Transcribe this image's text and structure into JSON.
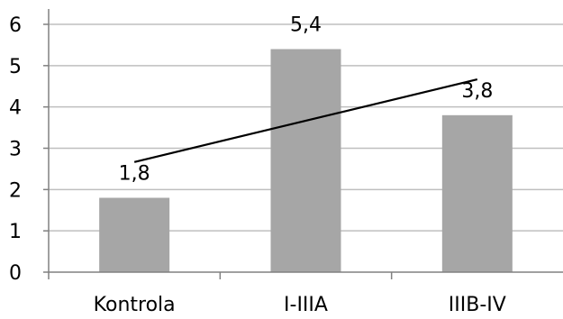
{
  "chart_data": {
    "type": "bar",
    "categories": [
      "Kontrola",
      "I-IIIA",
      "IIIB-IV"
    ],
    "values": [
      1.8,
      5.4,
      3.8
    ],
    "data_labels": [
      "1,8",
      "5,4",
      "3,8"
    ],
    "y_ticks": [
      "0",
      "1",
      "2",
      "3",
      "4",
      "5",
      "6"
    ],
    "ylim": [
      0,
      6
    ],
    "grid": true,
    "legend": "none",
    "trendline": {
      "type": "linear",
      "color": "#000000"
    },
    "bar_color": "#a6a6a6",
    "grid_color": "#bfbfbf",
    "axis_color": "#808080"
  }
}
